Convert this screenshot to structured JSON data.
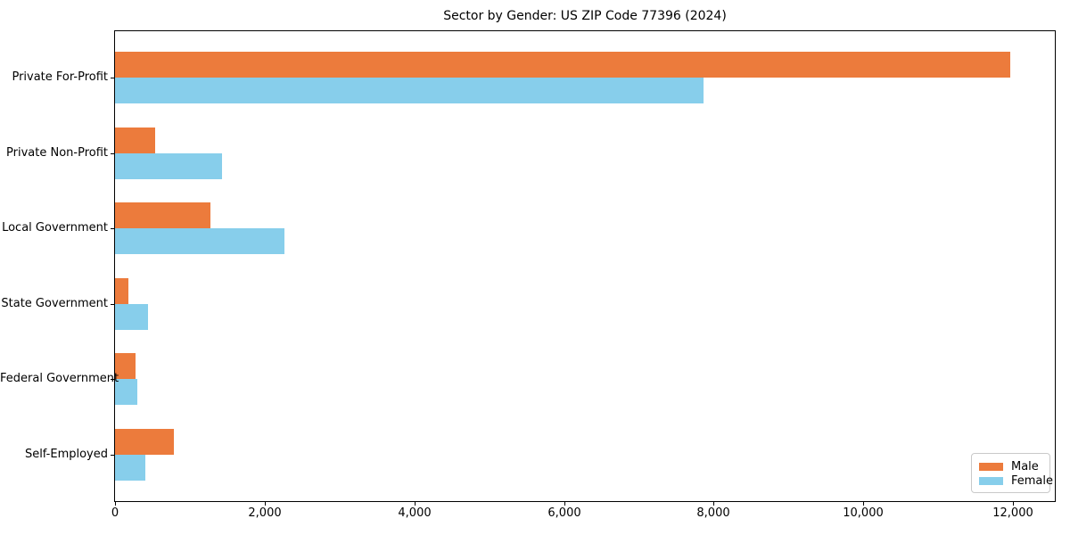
{
  "title": "Sector by Gender: US ZIP Code 77396 (2024)",
  "chart_data": {
    "type": "bar",
    "orientation": "horizontal",
    "title": "Sector by Gender: US ZIP Code 77396 (2024)",
    "categories": [
      "Private For-Profit",
      "Private Non-Profit",
      "Local Government",
      "State Government",
      "Federal Government",
      "Self-Employed"
    ],
    "series": [
      {
        "name": "Male",
        "color": "#ec7b3c",
        "values": [
          11960,
          540,
          1280,
          175,
          270,
          790
        ]
      },
      {
        "name": "Female",
        "color": "#87ceeb",
        "values": [
          7870,
          1430,
          2260,
          440,
          300,
          410
        ]
      }
    ],
    "xlabel": "",
    "ylabel": "",
    "xlim": [
      0,
      12560
    ],
    "x_ticks": [
      0,
      2000,
      4000,
      6000,
      8000,
      10000,
      12000
    ],
    "x_tick_labels": [
      "0",
      "2,000",
      "4,000",
      "6,000",
      "8,000",
      "10,000",
      "12,000"
    ],
    "grid": false,
    "legend_position": "lower right",
    "background_color": "#ffffff",
    "axis_color": "#000000"
  }
}
